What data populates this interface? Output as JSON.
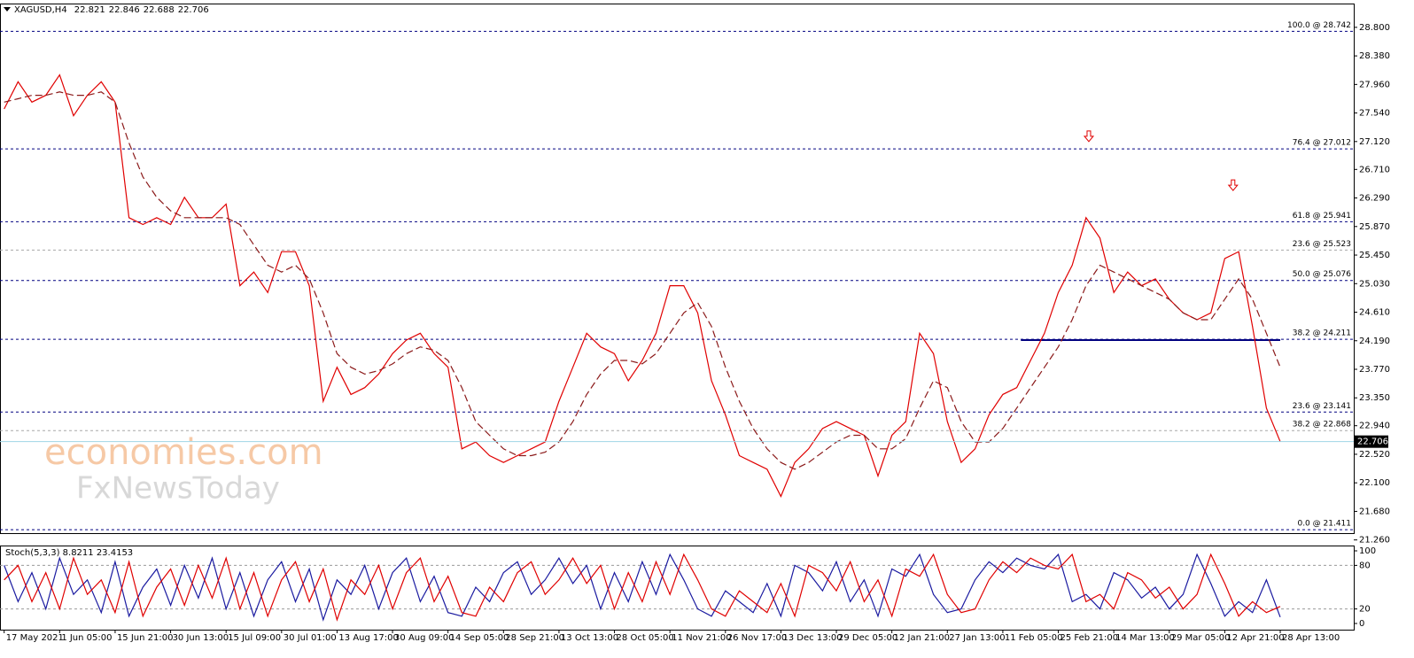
{
  "chart_data": [
    {
      "type": "line",
      "title": "XAGUSD,H4",
      "ohlc": [
        22.821,
        22.846,
        22.688,
        22.706
      ],
      "x": [
        0,
        1,
        2,
        3,
        4,
        5,
        6,
        7,
        8,
        9,
        10,
        11,
        12,
        13,
        14,
        15,
        16,
        17,
        18,
        19,
        20,
        21,
        22,
        23,
        24,
        25,
        26,
        27,
        28,
        29,
        30,
        31,
        32,
        33,
        34,
        35,
        36,
        37,
        38,
        39,
        40,
        41,
        42,
        43,
        44,
        45,
        46,
        47,
        48,
        49,
        50,
        51,
        52,
        53,
        54,
        55,
        56,
        57,
        58,
        59,
        60,
        61,
        62,
        63,
        64,
        65,
        66,
        67,
        68,
        69,
        70,
        71,
        72,
        73,
        74,
        75,
        76,
        77,
        78,
        79,
        80,
        81,
        82,
        83,
        84,
        85,
        86,
        87,
        88,
        89,
        90,
        91,
        92
      ],
      "xlim": [
        -0.3,
        97.3
      ],
      "ylim": [
        21.36,
        29.15
      ],
      "xticks": [
        {
          "value": 0,
          "label": "17 May 2021"
        },
        {
          "value": 4,
          "label": "1 Jun 05:00"
        },
        {
          "value": 8,
          "label": "15 Jun 21:00"
        },
        {
          "value": 12,
          "label": "30 Jun 13:00"
        },
        {
          "value": 16,
          "label": "15 Jul 09:00"
        },
        {
          "value": 20,
          "label": "30 Jul 01:00"
        },
        {
          "value": 24,
          "label": "13 Aug 17:00"
        },
        {
          "value": 28,
          "label": "30 Aug 09:00"
        },
        {
          "value": 32,
          "label": "14 Sep 05:00"
        },
        {
          "value": 36,
          "label": "28 Sep 21:00"
        },
        {
          "value": 40,
          "label": "13 Oct 13:00"
        },
        {
          "value": 44,
          "label": "28 Oct 05:00"
        },
        {
          "value": 48,
          "label": "11 Nov 21:00"
        },
        {
          "value": 52,
          "label": "26 Nov 17:00"
        },
        {
          "value": 56,
          "label": "13 Dec 13:00"
        },
        {
          "value": 60,
          "label": "29 Dec 05:00"
        },
        {
          "value": 64,
          "label": "12 Jan 21:00"
        },
        {
          "value": 68,
          "label": "27 Jan 13:00"
        },
        {
          "value": 72,
          "label": "11 Feb 05:00"
        },
        {
          "value": 76,
          "label": "25 Feb 21:00"
        },
        {
          "value": 80,
          "label": "14 Mar 13:00"
        },
        {
          "value": 84,
          "label": "29 Mar 05:00"
        },
        {
          "value": 88,
          "label": "12 Apr 21:00"
        },
        {
          "value": 92,
          "label": "28 Apr 13:00"
        }
      ],
      "yticks": [
        {
          "value": 28.8,
          "label": "28.800"
        },
        {
          "value": 28.38,
          "label": "28.380"
        },
        {
          "value": 27.96,
          "label": "27.960"
        },
        {
          "value": 27.54,
          "label": "27.540"
        },
        {
          "value": 27.12,
          "label": "27.120"
        },
        {
          "value": 26.71,
          "label": "26.710"
        },
        {
          "value": 26.29,
          "label": "26.290"
        },
        {
          "value": 25.87,
          "label": "25.870"
        },
        {
          "value": 25.45,
          "label": "25.450"
        },
        {
          "value": 25.03,
          "label": "25.030"
        },
        {
          "value": 24.61,
          "label": "24.610"
        },
        {
          "value": 24.19,
          "label": "24.190"
        },
        {
          "value": 23.77,
          "label": "23.770"
        },
        {
          "value": 23.35,
          "label": "23.350"
        },
        {
          "value": 22.94,
          "label": "22.940"
        },
        {
          "value": 22.52,
          "label": "22.520"
        },
        {
          "value": 22.1,
          "label": "22.100"
        },
        {
          "value": 21.68,
          "label": "21.680"
        },
        {
          "value": 21.26,
          "label": "21.260"
        }
      ],
      "series": [
        {
          "color": "#e00000",
          "style": "solid",
          "values": [
            27.6,
            28.0,
            27.7,
            27.8,
            28.1,
            27.5,
            27.8,
            28.0,
            27.7,
            26.0,
            25.9,
            26.0,
            25.9,
            26.3,
            26.0,
            26.0,
            26.2,
            25.0,
            25.2,
            24.9,
            25.5,
            25.5,
            25.0,
            23.3,
            23.8,
            23.4,
            23.5,
            23.7,
            24.0,
            24.2,
            24.3,
            24.0,
            23.8,
            22.6,
            22.7,
            22.5,
            22.4,
            22.5,
            22.6,
            22.7,
            23.3,
            23.8,
            24.3,
            24.1,
            24.0,
            23.6,
            23.9,
            24.3,
            25.0,
            25.0,
            24.6,
            23.6,
            23.1,
            22.5,
            22.4,
            22.3,
            21.9,
            22.4,
            22.6,
            22.9,
            23.0,
            22.9,
            22.8,
            22.2,
            22.8,
            23.0,
            24.3,
            24.0,
            23.0,
            22.4,
            22.6,
            23.1,
            23.4,
            23.5,
            23.9,
            24.3,
            24.9,
            25.3,
            26.0,
            25.7,
            24.9,
            25.2,
            25.0,
            25.1,
            24.8,
            24.6,
            24.5,
            24.6,
            25.4,
            25.5,
            24.4,
            23.2,
            22.706
          ]
        },
        {
          "color": "#8b1a1a",
          "style": "dashed",
          "values": [
            27.7,
            27.75,
            27.8,
            27.8,
            27.85,
            27.8,
            27.8,
            27.85,
            27.7,
            27.1,
            26.6,
            26.3,
            26.1,
            26.0,
            26.0,
            26.0,
            26.0,
            25.9,
            25.6,
            25.3,
            25.2,
            25.3,
            25.1,
            24.6,
            24.0,
            23.8,
            23.7,
            23.75,
            23.85,
            24.0,
            24.1,
            24.05,
            23.9,
            23.5,
            23.0,
            22.8,
            22.6,
            22.5,
            22.5,
            22.55,
            22.7,
            23.0,
            23.4,
            23.7,
            23.9,
            23.9,
            23.85,
            24.0,
            24.3,
            24.6,
            24.75,
            24.4,
            23.8,
            23.3,
            22.9,
            22.6,
            22.4,
            22.3,
            22.4,
            22.55,
            22.7,
            22.8,
            22.8,
            22.6,
            22.6,
            22.75,
            23.2,
            23.6,
            23.5,
            23.0,
            22.7,
            22.7,
            22.9,
            23.2,
            23.5,
            23.8,
            24.1,
            24.5,
            25.0,
            25.3,
            25.2,
            25.1,
            25.0,
            24.9,
            24.8,
            24.6,
            24.5,
            24.5,
            24.8,
            25.1,
            24.8,
            24.3,
            23.8
          ]
        }
      ],
      "levels": [
        {
          "value": 28.742,
          "label": "100.0 @ 28.742",
          "color": "#000080"
        },
        {
          "value": 27.012,
          "label": "76.4 @ 27.012",
          "color": "#000080"
        },
        {
          "value": 25.941,
          "label": "61.8 @ 25.941",
          "color": "#000080"
        },
        {
          "value": 25.523,
          "label": "23.6 @ 25.523",
          "color": "#a8a8a8"
        },
        {
          "value": 25.076,
          "label": "50.0 @ 25.076",
          "color": "#000080"
        },
        {
          "value": 24.211,
          "label": "38.2 @ 24.211",
          "color": "#000080"
        },
        {
          "value": 23.141,
          "label": "23.6 @ 23.141",
          "color": "#000080"
        },
        {
          "value": 22.868,
          "label": "38.2 @ 22.868",
          "color": "#a8a8a8"
        },
        {
          "value": 21.411,
          "label": "0.0 @ 21.411",
          "color": "#000080"
        }
      ],
      "last_price": 22.706,
      "support_line": {
        "x": [
          73.3,
          92
        ],
        "value": 24.2,
        "color": "#000080"
      },
      "arrows": [
        {
          "x": 78.2,
          "value": 27.12
        },
        {
          "x": 88.6,
          "value": 26.4
        }
      ]
    },
    {
      "type": "line",
      "title": "Stoch(5,3,3) 8.8211 23.4153",
      "ylim": [
        -8.5,
        107.3
      ],
      "yticks": [
        100,
        80,
        20,
        0
      ],
      "levels": [
        80,
        20
      ],
      "series": [
        {
          "color": "#1a1aa0",
          "style": "solid",
          "values": [
            80,
            30,
            70,
            20,
            90,
            40,
            60,
            15,
            85,
            10,
            50,
            75,
            25,
            80,
            35,
            90,
            20,
            70,
            10,
            60,
            85,
            30,
            75,
            5,
            60,
            40,
            80,
            20,
            70,
            90,
            30,
            65,
            15,
            10,
            50,
            30,
            70,
            85,
            40,
            60,
            90,
            55,
            80,
            20,
            70,
            30,
            85,
            40,
            95,
            60,
            20,
            10,
            45,
            30,
            15,
            55,
            10,
            80,
            70,
            45,
            85,
            30,
            60,
            10,
            75,
            65,
            95,
            40,
            15,
            20,
            60,
            85,
            70,
            90,
            80,
            75,
            95,
            30,
            40,
            20,
            70,
            60,
            35,
            50,
            20,
            40,
            95,
            55,
            10,
            30,
            15,
            60,
            8.82
          ]
        },
        {
          "color": "#e00000",
          "style": "solid",
          "values": [
            60,
            80,
            30,
            70,
            20,
            90,
            40,
            60,
            15,
            85,
            10,
            50,
            75,
            25,
            80,
            35,
            90,
            20,
            70,
            10,
            60,
            85,
            30,
            75,
            5,
            60,
            40,
            80,
            20,
            70,
            90,
            30,
            65,
            15,
            10,
            50,
            30,
            70,
            85,
            40,
            60,
            90,
            55,
            80,
            20,
            70,
            30,
            85,
            40,
            95,
            60,
            20,
            10,
            45,
            30,
            15,
            55,
            10,
            80,
            70,
            45,
            85,
            30,
            60,
            10,
            75,
            65,
            95,
            40,
            15,
            20,
            60,
            85,
            70,
            90,
            80,
            75,
            95,
            30,
            40,
            20,
            70,
            60,
            35,
            50,
            20,
            40,
            95,
            55,
            10,
            30,
            15,
            23.42
          ]
        }
      ]
    }
  ],
  "watermark": [
    "economies.com",
    "FxNewsToday"
  ]
}
